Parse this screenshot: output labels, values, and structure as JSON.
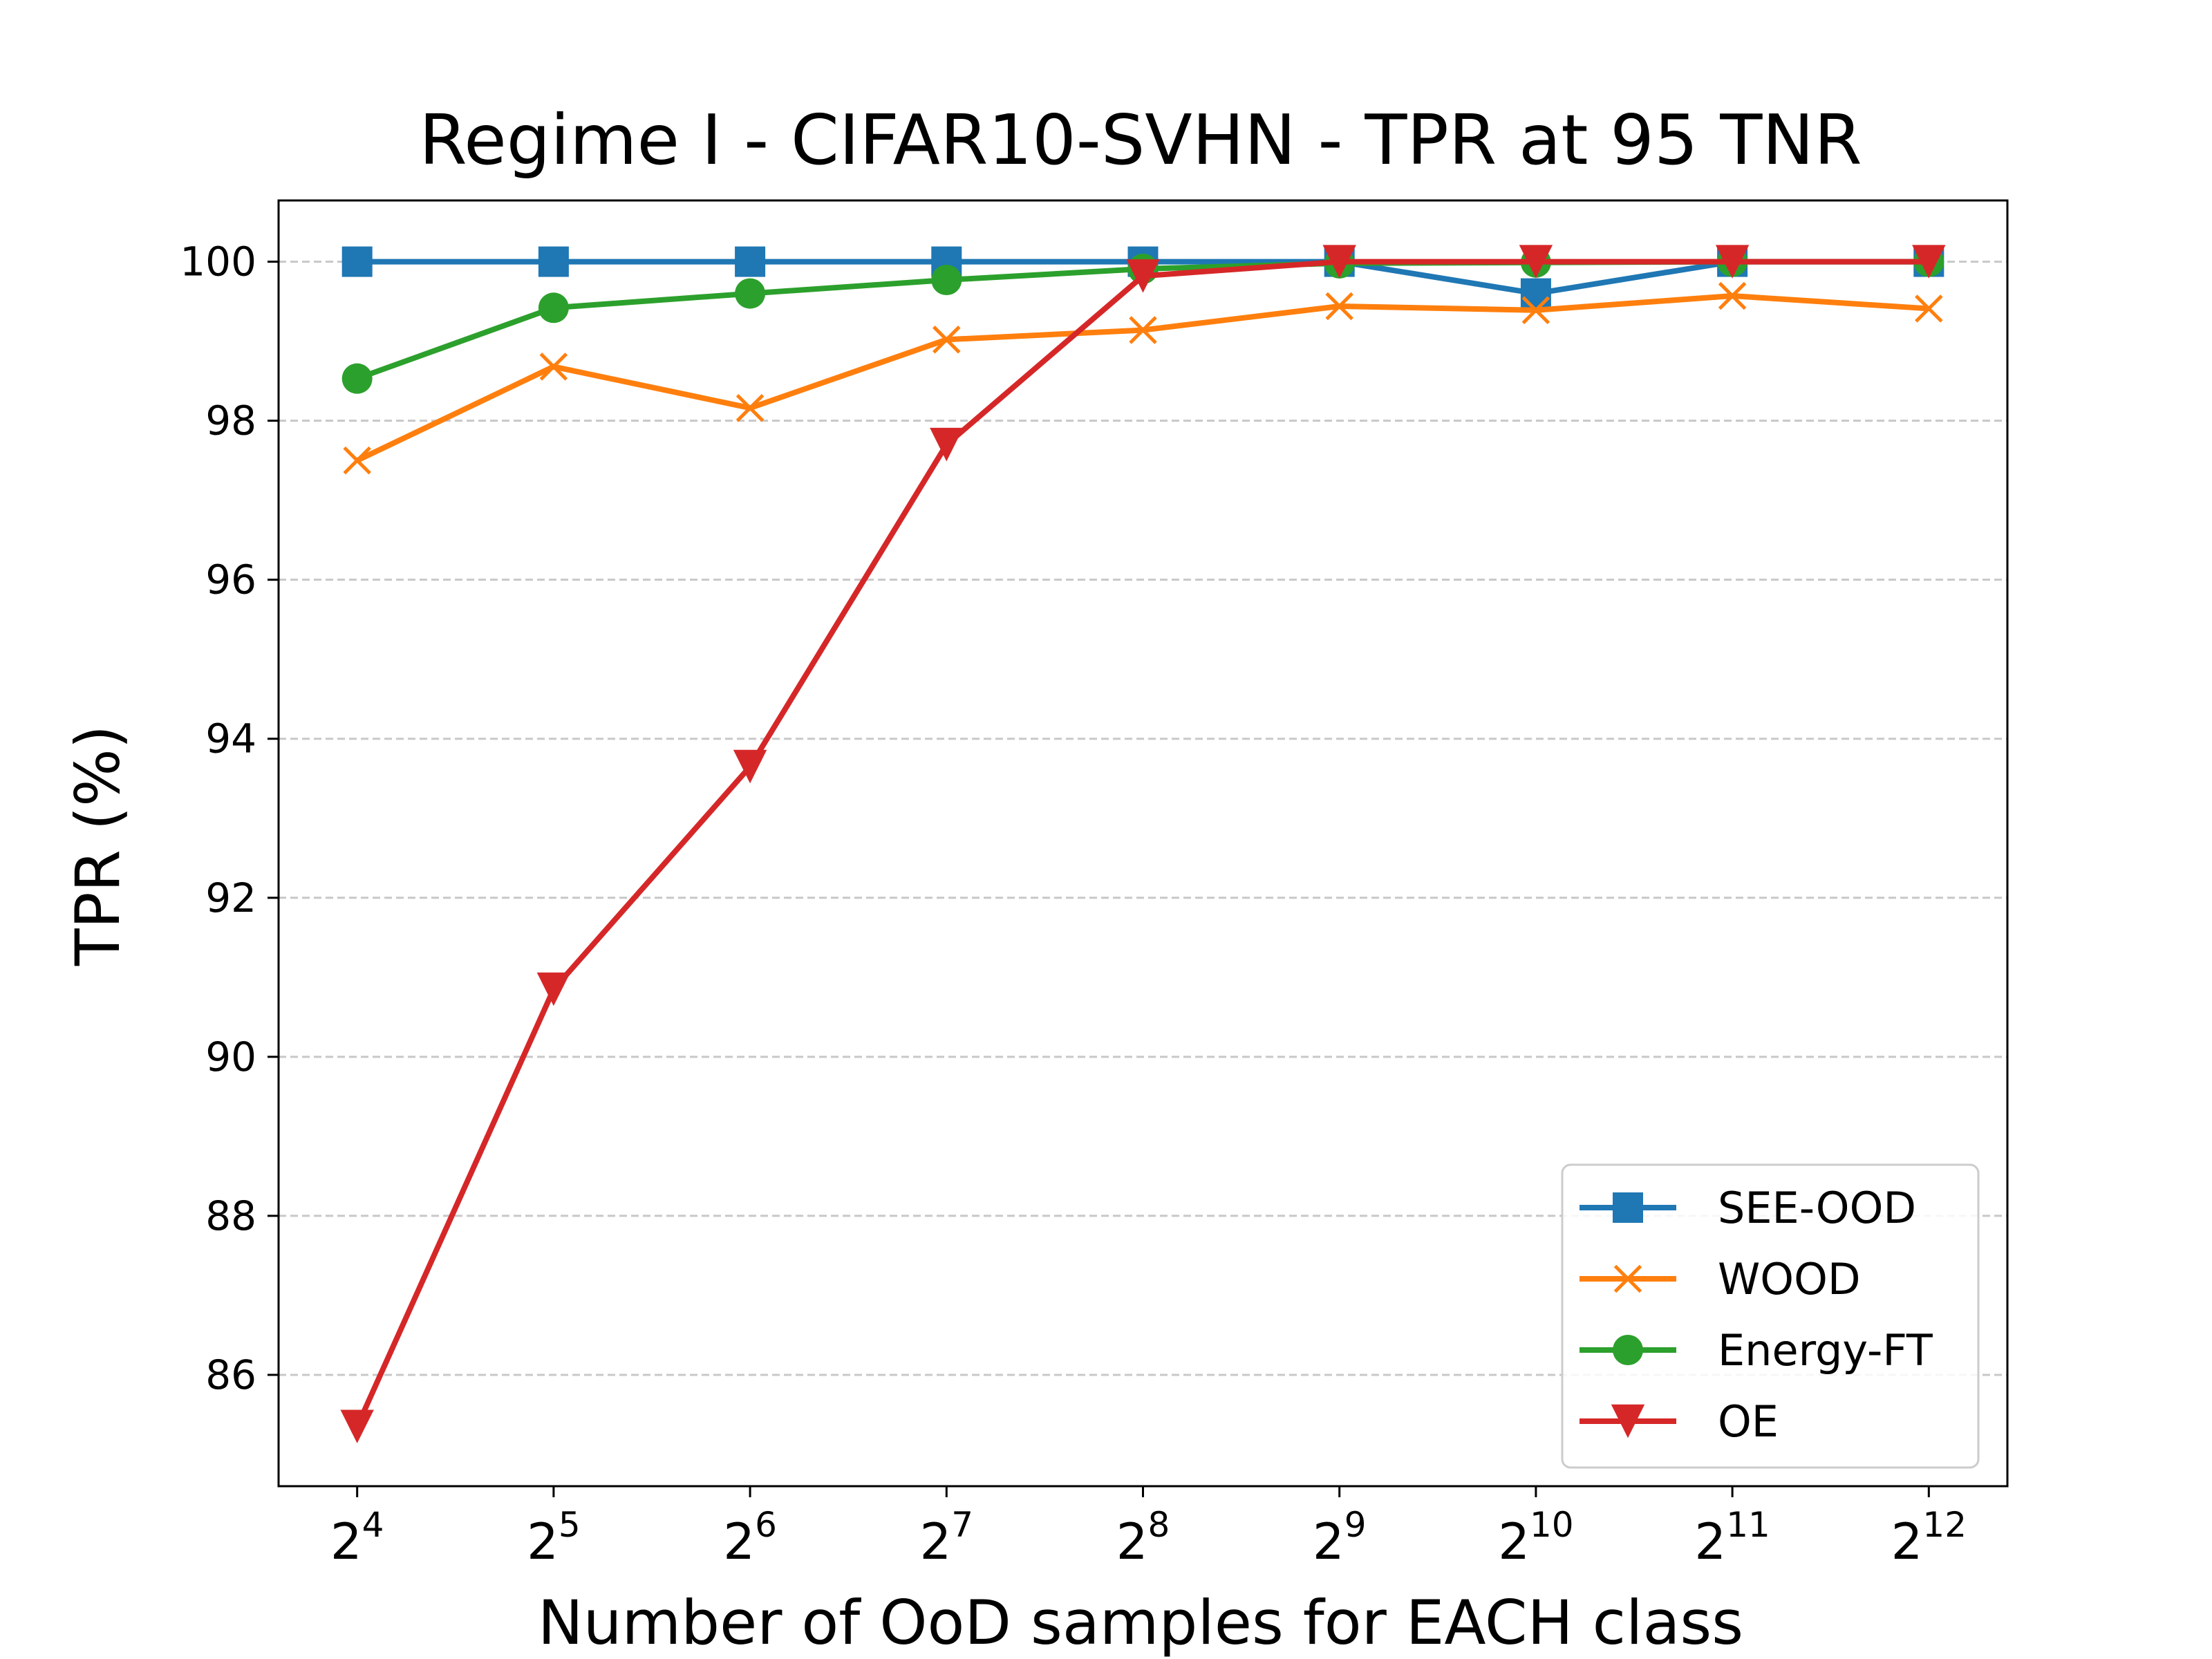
{
  "chart_data": {
    "type": "line",
    "title": "Regime I - CIFAR10-SVHN - TPR at 95 TNR",
    "xlabel": "Number of OoD samples for EACH class",
    "ylabel": "TPR (%)",
    "x_tick_labels": [
      {
        "base": "2",
        "exp": "4"
      },
      {
        "base": "2",
        "exp": "5"
      },
      {
        "base": "2",
        "exp": "6"
      },
      {
        "base": "2",
        "exp": "7"
      },
      {
        "base": "2",
        "exp": "8"
      },
      {
        "base": "2",
        "exp": "9"
      },
      {
        "base": "2",
        "exp": "10"
      },
      {
        "base": "2",
        "exp": "11"
      },
      {
        "base": "2",
        "exp": "12"
      }
    ],
    "x": [
      16,
      32,
      64,
      128,
      256,
      512,
      1024,
      2048,
      4096
    ],
    "x_scale": "log2",
    "y_ticks": [
      86,
      88,
      90,
      92,
      94,
      96,
      98,
      100
    ],
    "ylim": [
      84.6,
      100.77
    ],
    "grid": "horizontal dashed",
    "legend_position": "lower right",
    "series": [
      {
        "name": "SEE-OOD",
        "color": "#1f77b4",
        "marker": "square",
        "values": [
          100,
          100,
          100,
          100,
          100,
          100,
          99.6,
          100,
          100
        ]
      },
      {
        "name": "WOOD",
        "color": "#ff7f0e",
        "marker": "x",
        "values": [
          97.5,
          98.68,
          98.16,
          99.02,
          99.14,
          99.44,
          99.39,
          99.57,
          99.41
        ]
      },
      {
        "name": "Energy-FT",
        "color": "#2ca02c",
        "marker": "circle",
        "values": [
          98.53,
          99.42,
          99.6,
          99.77,
          99.91,
          99.98,
          99.99,
          100,
          100
        ]
      },
      {
        "name": "OE",
        "color": "#d62728",
        "marker": "triangle-down",
        "values": [
          85.35,
          90.85,
          93.65,
          97.7,
          99.82,
          100,
          100,
          100,
          100
        ]
      }
    ]
  }
}
